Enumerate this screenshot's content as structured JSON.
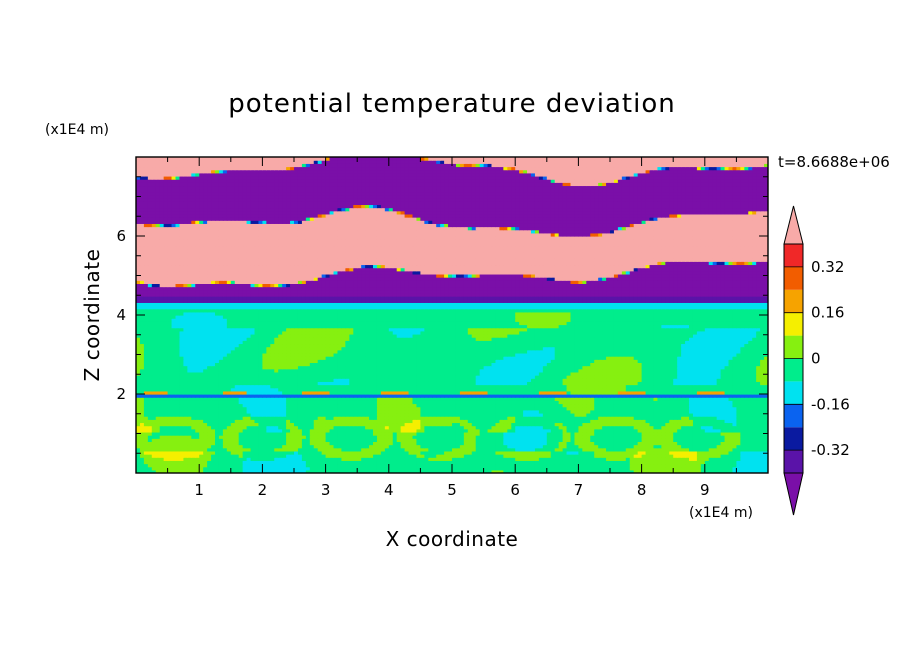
{
  "chart_data": {
    "type": "heatmap",
    "title": "potential temperature deviation",
    "xlabel": "X coordinate",
    "ylabel": "Z coordinate",
    "x_unit": "(x1E4 m)",
    "y_unit": "(x1E4 m)",
    "time_label": "t=8.6688e+06",
    "xlim": [
      0,
      10
    ],
    "ylim": [
      0,
      8
    ],
    "x_ticks": [
      "1",
      "2",
      "3",
      "4",
      "5",
      "6",
      "7",
      "8",
      "9"
    ],
    "y_ticks": [
      "2",
      "4",
      "6"
    ],
    "colorbar": {
      "levels": [
        -0.4,
        -0.32,
        -0.24,
        -0.16,
        -0.08,
        0,
        0.08,
        0.16,
        0.24,
        0.32,
        0.4
      ],
      "labels": [
        "0.32",
        "0.16",
        "0",
        "-0.16",
        "-0.32"
      ],
      "label_values": [
        0.32,
        0.16,
        0,
        -0.16,
        -0.32
      ],
      "colors": {
        "below": "#7a0fa8",
        "bins": [
          "#5a13a8",
          "#0a1aa0",
          "#0a63f0",
          "#00e2f0",
          "#00ed8c",
          "#86f010",
          "#f5ef00",
          "#f6a300",
          "#f25d00",
          "#f02828"
        ],
        "above": "#f8aaa8"
      },
      "extend": "both"
    },
    "fields": {
      "stratosphere_alternating_bands": "above / below",
      "stable_layer_z": 4.3,
      "lower_troposphere": "near zero with convective cells"
    }
  }
}
